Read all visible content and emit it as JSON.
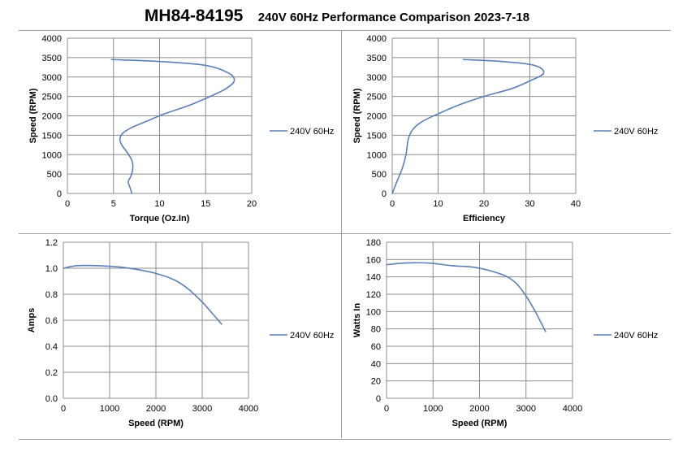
{
  "header": {
    "title": "MH84-84195",
    "subtitle": "240V 60Hz Performance Comparison 2023-7-18"
  },
  "colors": {
    "series": "#5b7fb8",
    "grid": "#8c8c8c"
  },
  "chart_data": [
    {
      "type": "line",
      "xlabel": "Torque (Oz.In)",
      "ylabel": "Speed (RPM)",
      "xlim": [
        0,
        20
      ],
      "ylim": [
        0,
        4000
      ],
      "xticks": [
        0,
        5,
        10,
        15,
        20
      ],
      "yticks": [
        0,
        500,
        1000,
        1500,
        2000,
        2500,
        3000,
        3500,
        4000
      ],
      "ytick_decimals": 0,
      "grid": true,
      "legend": "right",
      "series": [
        {
          "name": "240V 60Hz",
          "points": [
            [
              7.0,
              0
            ],
            [
              6.8,
              150
            ],
            [
              6.6,
              300
            ],
            [
              6.9,
              450
            ],
            [
              7.1,
              650
            ],
            [
              7.0,
              850
            ],
            [
              6.5,
              1050
            ],
            [
              5.9,
              1250
            ],
            [
              5.7,
              1400
            ],
            [
              6.0,
              1550
            ],
            [
              7.0,
              1700
            ],
            [
              8.5,
              1850
            ],
            [
              10.5,
              2050
            ],
            [
              13.0,
              2250
            ],
            [
              15.5,
              2500
            ],
            [
              17.2,
              2700
            ],
            [
              18.1,
              2900
            ],
            [
              17.5,
              3100
            ],
            [
              15.0,
              3300
            ],
            [
              10.0,
              3400
            ],
            [
              4.8,
              3450
            ]
          ]
        }
      ]
    },
    {
      "type": "line",
      "xlabel": "Efficiency",
      "ylabel": "Speed (RPM)",
      "xlim": [
        0,
        40
      ],
      "ylim": [
        0,
        4000
      ],
      "xticks": [
        0,
        10,
        20,
        30,
        40
      ],
      "yticks": [
        0,
        500,
        1000,
        1500,
        2000,
        2500,
        3000,
        3500,
        4000
      ],
      "ytick_decimals": 0,
      "grid": true,
      "legend": "right",
      "series": [
        {
          "name": "240V 60Hz",
          "points": [
            [
              0,
              0
            ],
            [
              1.0,
              300
            ],
            [
              2.2,
              650
            ],
            [
              3.0,
              1000
            ],
            [
              3.5,
              1400
            ],
            [
              4.5,
              1650
            ],
            [
              6.5,
              1850
            ],
            [
              10.0,
              2050
            ],
            [
              15.0,
              2300
            ],
            [
              20.0,
              2500
            ],
            [
              26.0,
              2700
            ],
            [
              30.0,
              2900
            ],
            [
              33.0,
              3100
            ],
            [
              31.0,
              3300
            ],
            [
              24.0,
              3400
            ],
            [
              15.5,
              3450
            ]
          ]
        }
      ]
    },
    {
      "type": "line",
      "xlabel": "Speed (RPM)",
      "ylabel": "Amps",
      "xlim": [
        0,
        4000
      ],
      "ylim": [
        0,
        1.2
      ],
      "xticks": [
        0,
        1000,
        2000,
        3000,
        4000
      ],
      "yticks": [
        0,
        0.2,
        0.4,
        0.6,
        0.8,
        1.0,
        1.2
      ],
      "ytick_decimals": 1,
      "grid": true,
      "legend": "right",
      "series": [
        {
          "name": "240V 60Hz",
          "points": [
            [
              0,
              1.0
            ],
            [
              300,
              1.02
            ],
            [
              700,
              1.02
            ],
            [
              1200,
              1.01
            ],
            [
              1600,
              0.99
            ],
            [
              2000,
              0.96
            ],
            [
              2400,
              0.91
            ],
            [
              2700,
              0.84
            ],
            [
              3000,
              0.74
            ],
            [
              3200,
              0.66
            ],
            [
              3420,
              0.57
            ]
          ]
        }
      ]
    },
    {
      "type": "line",
      "xlabel": "Speed (RPM)",
      "ylabel": "Watts In",
      "xlim": [
        0,
        4000
      ],
      "ylim": [
        0,
        180
      ],
      "xticks": [
        0,
        1000,
        2000,
        3000,
        4000
      ],
      "yticks": [
        0,
        20,
        40,
        60,
        80,
        100,
        120,
        140,
        160,
        180
      ],
      "ytick_decimals": 0,
      "grid": true,
      "legend": "right",
      "series": [
        {
          "name": "240V 60Hz",
          "points": [
            [
              0,
              154
            ],
            [
              400,
              156
            ],
            [
              900,
              156
            ],
            [
              1400,
              153
            ],
            [
              1900,
              151
            ],
            [
              2300,
              146
            ],
            [
              2600,
              140
            ],
            [
              2800,
              132
            ],
            [
              3000,
              118
            ],
            [
              3200,
              100
            ],
            [
              3420,
              77
            ]
          ]
        }
      ]
    }
  ]
}
